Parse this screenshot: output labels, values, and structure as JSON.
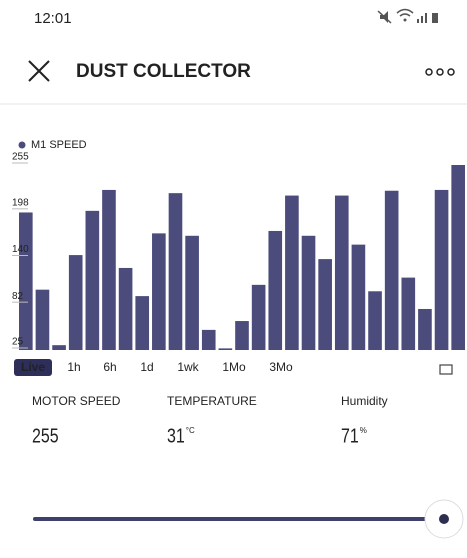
{
  "status_bar": {
    "time": "12:01"
  },
  "header": {
    "title": "DUST COLLECTOR"
  },
  "chart_data": {
    "type": "bar",
    "legend": "M1 SPEED",
    "color": "#4b4c7c",
    "values": [
      196,
      100,
      31,
      143,
      198,
      224,
      127,
      92,
      170,
      220,
      167,
      50,
      27,
      61,
      106,
      173,
      217,
      167,
      138,
      217,
      156,
      98,
      223,
      115,
      76,
      224,
      255
    ],
    "ylim": [
      25,
      255
    ],
    "yticks": [
      25,
      82,
      140,
      198,
      255
    ]
  },
  "ranges": [
    "Live",
    "1h",
    "6h",
    "1d",
    "1wk",
    "1Mo",
    "3Mo"
  ],
  "stats": [
    {
      "label": "MOTOR SPEED",
      "value": "255"
    },
    {
      "label": "TEMPERATURE",
      "value": "31",
      "unit": "°C"
    },
    {
      "label": "Humidity",
      "value": "71",
      "unit": "%"
    }
  ]
}
